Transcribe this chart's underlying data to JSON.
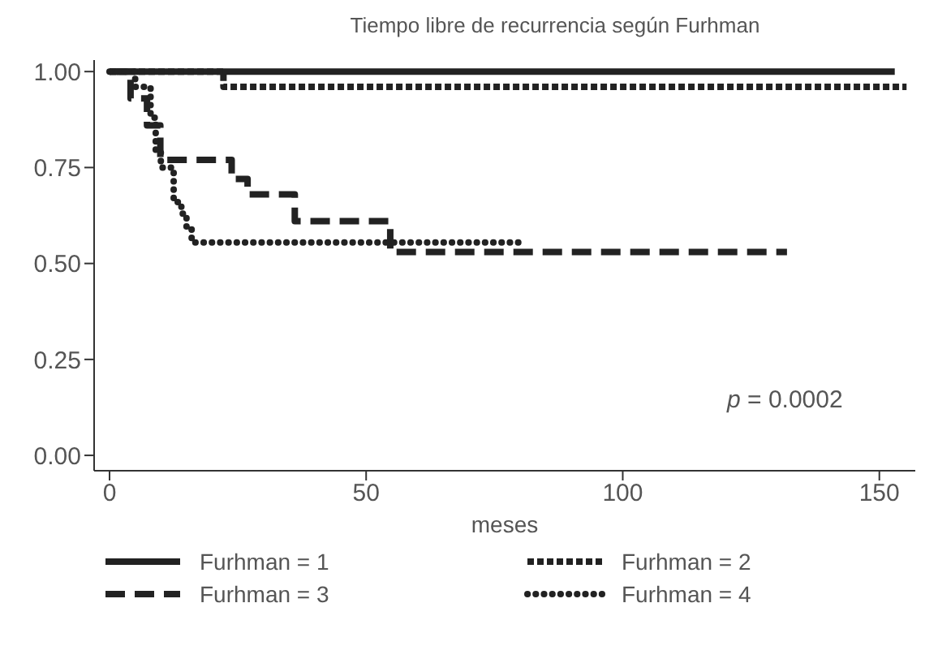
{
  "chart_data": {
    "type": "step",
    "title": "Tiempo libre de recurrencia según Furhman",
    "xlabel": "meses",
    "xlim": [
      -3,
      157
    ],
    "xticks": [
      0,
      50,
      100,
      150
    ],
    "ylim": [
      -0.04,
      1.03
    ],
    "yticks": [
      {
        "value": 0,
        "label": "0.00"
      },
      {
        "value": 0.25,
        "label": "0.25"
      },
      {
        "value": 0.5,
        "label": "0.50"
      },
      {
        "value": 0.75,
        "label": "0.75"
      },
      {
        "value": 1,
        "label": "1.00"
      }
    ],
    "grid": false,
    "legend": "bottom",
    "marker": "none",
    "annotations": [
      "p = 0.0002"
    ],
    "series": [
      {
        "name": "Furhman = 1",
        "color": "#222222",
        "line_style": "solid",
        "x": [
          0,
          153
        ],
        "values": [
          1,
          1
        ]
      },
      {
        "name": "Furhman = 2",
        "color": "#222222",
        "line_style": "dotted",
        "x": [
          0,
          22.2,
          155.3
        ],
        "values": [
          1,
          0.96,
          0.96
        ]
      },
      {
        "name": "Furhman = 3",
        "color": "#222222",
        "line_style": "dashed",
        "x": [
          0,
          4.1,
          7.3,
          9.9,
          23.8,
          26.9,
          36.1,
          54.7,
          132
        ],
        "values": [
          1,
          0.93,
          0.86,
          0.77,
          0.72,
          0.68,
          0.61,
          0.53,
          0.53
        ]
      },
      {
        "name": "Furhman = 4",
        "color": "#222222",
        "line_style": "dotted",
        "x": [
          0,
          5,
          8,
          9,
          10,
          12.5,
          14,
          15,
          16,
          81
        ],
        "values": [
          1,
          0.96,
          0.88,
          0.79,
          0.75,
          0.66,
          0.63,
          0.59,
          0.555,
          0.555
        ]
      }
    ]
  }
}
